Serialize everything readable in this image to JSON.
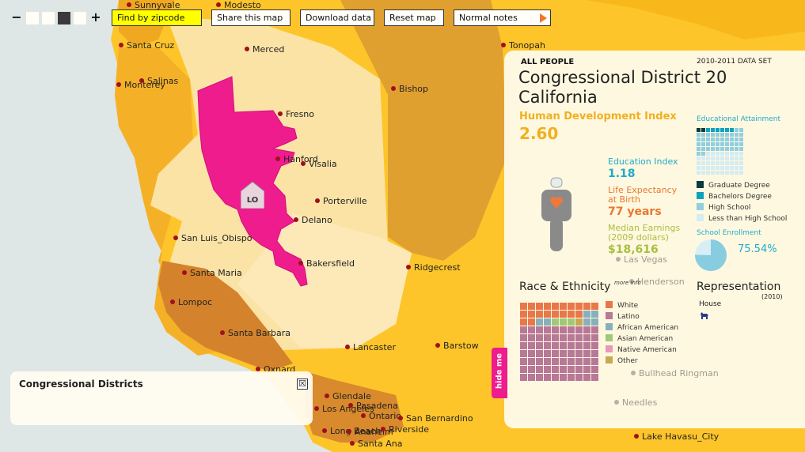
{
  "toolbar": {
    "zoom_out": "−",
    "zoom_in": "+",
    "find_zip": "Find by zipcode",
    "share": "Share this map",
    "download": "Download data",
    "reset": "Reset map",
    "notes": "Normal notes"
  },
  "map_labels": {
    "district_marker": "LO"
  },
  "cities": [
    {
      "name": "Sunnyvale"
    },
    {
      "name": "Modesto"
    },
    {
      "name": "Santa Cruz"
    },
    {
      "name": "Merced"
    },
    {
      "name": "Tonopah"
    },
    {
      "name": "Salinas"
    },
    {
      "name": "Monterey"
    },
    {
      "name": "Bishop"
    },
    {
      "name": "Fresno"
    },
    {
      "name": "Hanford"
    },
    {
      "name": "Visalia"
    },
    {
      "name": "Porterville"
    },
    {
      "name": "Delano"
    },
    {
      "name": "San Luis_Obispo"
    },
    {
      "name": "Bakersfield"
    },
    {
      "name": "Ridgecrest"
    },
    {
      "name": "Santa Maria"
    },
    {
      "name": "Lompoc"
    },
    {
      "name": "Santa Barbara"
    },
    {
      "name": "Lancaster"
    },
    {
      "name": "Barstow"
    },
    {
      "name": "Oxnard"
    },
    {
      "name": "Glendale"
    },
    {
      "name": "Los Angeles"
    },
    {
      "name": "Pasadena"
    },
    {
      "name": "Ontario"
    },
    {
      "name": "San Bernardino"
    },
    {
      "name": "Long Beach"
    },
    {
      "name": "Anaheim"
    },
    {
      "name": "Riverside"
    },
    {
      "name": "Santa Ana"
    },
    {
      "name": "Lake Havasu_City"
    },
    {
      "name": "Las Vegas"
    },
    {
      "name": "Henderson"
    },
    {
      "name": "Bullhead Ringman"
    },
    {
      "name": "Needles"
    }
  ],
  "panel": {
    "group": "ALL PEOPLE",
    "dataset": "2010-2011 DATA SET",
    "district": "Congressional District 20",
    "state": "California",
    "hdi_label": "Human Development Index",
    "hdi_value": "2.60",
    "edu_label": "Education Index",
    "edu_value": "1.18",
    "life_label_1": "Life Expectancy",
    "life_label_2": "at Birth",
    "life_value": "77 years",
    "earn_label_1": "Median Earnings",
    "earn_label_2": "(2009 dollars)",
    "earn_value": "$18,616",
    "attain_title": "Educational Attainment",
    "attain_legend": [
      "Graduate Degree",
      "Bachelors Degree",
      "High School",
      "Less than High School"
    ],
    "enroll_title": "School Enrollment",
    "enroll_value": "75.54%",
    "enroll_fraction": 0.7554,
    "race_title": "Race & Ethnicity",
    "more_info": "more info",
    "race_legend": [
      "White",
      "Latino",
      "African American",
      "Asian American",
      "Native American",
      "Other"
    ],
    "rep_title": "Representation",
    "rep_year": "(2010)",
    "rep_house": "House"
  },
  "colors": {
    "district": "#ee1c8c",
    "hdi": "#f0b020",
    "edu": "#20aacc",
    "life": "#e87830",
    "earn": "#a8c040"
  },
  "hide_tab": "hide me",
  "cd_box": {
    "title": "Congressional Districts",
    "close": "☒"
  }
}
